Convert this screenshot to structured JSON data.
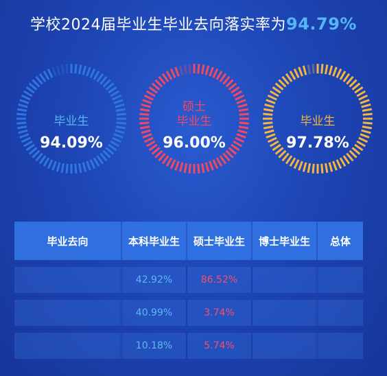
{
  "header": {
    "title_text": "学校2024届毕业生毕业去向落实率为",
    "title_value": "94.79%"
  },
  "gauges": [
    {
      "label_line1": "",
      "label_line2": "毕业生",
      "value": "94.09%",
      "rate": 0.9409,
      "color": "#2f76e3",
      "label_color": "#56b6f5"
    },
    {
      "label_line1": "硕士",
      "label_line2": "毕业生",
      "value": "96.00%",
      "rate": 0.96,
      "color": "#f04a63",
      "label_color": "#f04a63"
    },
    {
      "label_line1": "",
      "label_line2": "毕业生",
      "value": "97.78%",
      "rate": 0.9778,
      "color": "#f7b43f",
      "label_color": "#f7b43f"
    }
  ],
  "table": {
    "headers": [
      "毕业去向",
      "本科毕业生",
      "硕士毕业生",
      "博士毕业生",
      "总体"
    ],
    "rows": [
      {
        "c1": "",
        "c2": "42.92%",
        "c3": "86.52%",
        "c4": "",
        "c5": ""
      },
      {
        "c1": "",
        "c2": "40.99%",
        "c3": "3.74%",
        "c4": "",
        "c5": ""
      },
      {
        "c1": "",
        "c2": "10.18%",
        "c3": "5.74%",
        "c4": "",
        "c5": ""
      }
    ]
  }
}
